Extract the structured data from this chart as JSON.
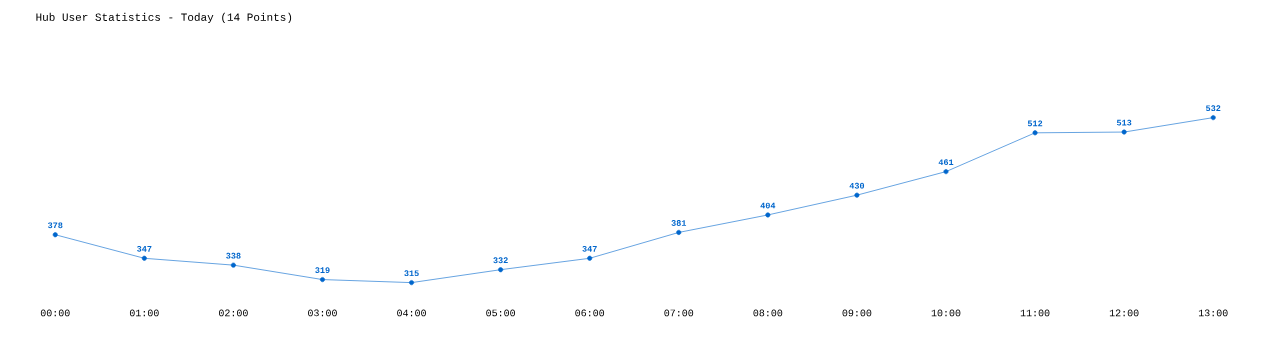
{
  "chart_data": {
    "type": "line",
    "title": "Hub User Statistics - Today (14 Points)",
    "categories": [
      "00:00",
      "01:00",
      "02:00",
      "03:00",
      "04:00",
      "05:00",
      "06:00",
      "07:00",
      "08:00",
      "09:00",
      "10:00",
      "11:00",
      "12:00",
      "13:00"
    ],
    "series": [
      {
        "color": "#0066cc",
        "values": [
          378,
          347,
          338,
          319,
          315,
          332,
          347,
          381,
          404,
          430,
          461,
          512,
          513,
          532
        ]
      }
    ],
    "tick_labels": "x",
    "data_labels": true,
    "marker": "circle",
    "line_style": "solid"
  }
}
